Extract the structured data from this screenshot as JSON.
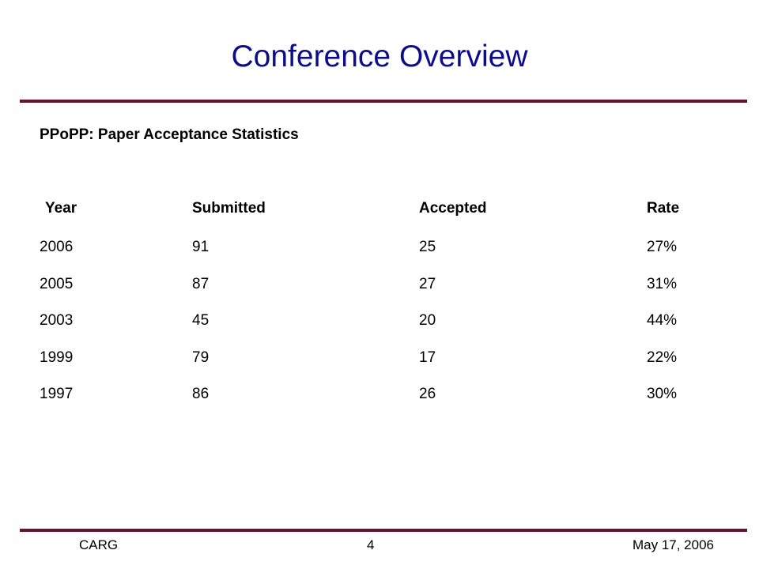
{
  "header": {
    "title": "Conference Overview"
  },
  "subtitle": "PPoPP: Paper Acceptance Statistics",
  "table": {
    "columns": [
      "Year",
      "Submitted",
      "Accepted",
      "Rate"
    ],
    "rows": [
      [
        "2006",
        "91",
        "25",
        "27%"
      ],
      [
        "2005",
        "87",
        "27",
        "31%"
      ],
      [
        "2003",
        "45",
        "20",
        "44%"
      ],
      [
        "1999",
        "79",
        "17",
        "22%"
      ],
      [
        "1997",
        "86",
        "26",
        "30%"
      ]
    ]
  },
  "footer": {
    "left": "CARG",
    "center": "4",
    "right": "May 17, 2006"
  }
}
